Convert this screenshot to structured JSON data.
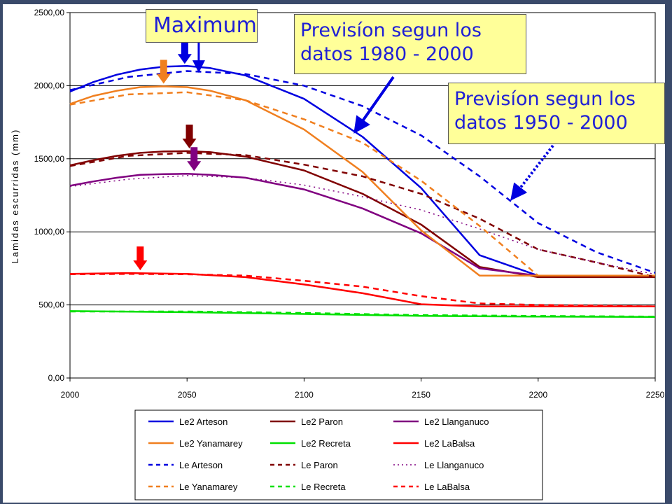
{
  "callouts": {
    "maximum": "Maximum",
    "forecast_1980_line1": "Previsíon segun los",
    "forecast_1980_line2": "datos 1980 - 2000",
    "forecast_1950_line1": "Previsíon segun los",
    "forecast_1950_line2": "datos 1950 - 2000"
  },
  "chart_data": {
    "type": "line",
    "title": "",
    "xlabel": "",
    "ylabel": "Lamidas escurridas (mm)",
    "xlim": [
      2000,
      2250
    ],
    "ylim": [
      0,
      2500
    ],
    "x_ticks": [
      "2000",
      "2050",
      "2100",
      "2150",
      "2200",
      "2250"
    ],
    "y_ticks": [
      "0,00",
      "500,00",
      "1000,00",
      "1500,00",
      "2000,00",
      "2500,00"
    ],
    "grid": "horizontal",
    "legend": "bottom",
    "series": [
      {
        "name": "Le2 Arteson",
        "color": "#0000e0",
        "dash": "solid",
        "x": [
          2000,
          2010,
          2020,
          2030,
          2040,
          2050,
          2060,
          2075,
          2100,
          2125,
          2150,
          2175,
          2200,
          2225,
          2250
        ],
        "y": [
          1960,
          2025,
          2075,
          2110,
          2130,
          2135,
          2120,
          2070,
          1910,
          1650,
          1300,
          840,
          700,
          700,
          700
        ]
      },
      {
        "name": "Le2 Paron",
        "color": "#800000",
        "dash": "solid",
        "x": [
          2000,
          2010,
          2020,
          2030,
          2040,
          2050,
          2060,
          2075,
          2100,
          2125,
          2150,
          2175,
          2200,
          2225,
          2250
        ],
        "y": [
          1455,
          1490,
          1520,
          1540,
          1550,
          1552,
          1545,
          1515,
          1420,
          1260,
          1050,
          760,
          690,
          690,
          690
        ]
      },
      {
        "name": "Le2 Llanganuco",
        "color": "#800080",
        "dash": "solid",
        "x": [
          2000,
          2010,
          2020,
          2030,
          2040,
          2050,
          2060,
          2075,
          2100,
          2125,
          2150,
          2175,
          2200,
          2225,
          2250
        ],
        "y": [
          1315,
          1345,
          1370,
          1390,
          1395,
          1397,
          1390,
          1370,
          1290,
          1160,
          990,
          750,
          700,
          700,
          700
        ]
      },
      {
        "name": "Le2 Yanamarey",
        "color": "#f07f1f",
        "dash": "solid",
        "x": [
          2000,
          2010,
          2020,
          2030,
          2040,
          2050,
          2060,
          2075,
          2100,
          2125,
          2150,
          2175,
          2200,
          2225,
          2250
        ],
        "y": [
          1875,
          1930,
          1965,
          1990,
          1995,
          1990,
          1965,
          1900,
          1700,
          1410,
          1010,
          700,
          700,
          700,
          700
        ]
      },
      {
        "name": "Le2 Recreta",
        "color": "#00e000",
        "dash": "solid",
        "x": [
          2000,
          2050,
          2100,
          2150,
          2200,
          2250
        ],
        "y": [
          458,
          450,
          438,
          425,
          420,
          418
        ]
      },
      {
        "name": "Le2 LaBalsa",
        "color": "#ff0000",
        "dash": "solid",
        "x": [
          2000,
          2025,
          2050,
          2075,
          2100,
          2125,
          2150,
          2175,
          2200,
          2225,
          2250
        ],
        "y": [
          712,
          718,
          712,
          690,
          640,
          580,
          505,
          490,
          490,
          490,
          490
        ]
      },
      {
        "name": "Le Arteson",
        "color": "#0000e0",
        "dash": "dashed",
        "x": [
          2000,
          2025,
          2050,
          2075,
          2100,
          2125,
          2150,
          2175,
          2200,
          2225,
          2250
        ],
        "y": [
          1970,
          2060,
          2100,
          2080,
          2000,
          1860,
          1660,
          1380,
          1060,
          860,
          720
        ]
      },
      {
        "name": "Le Paron",
        "color": "#800000",
        "dash": "dashed",
        "x": [
          2000,
          2025,
          2050,
          2075,
          2100,
          2125,
          2150,
          2175,
          2200,
          2225,
          2250
        ],
        "y": [
          1450,
          1520,
          1540,
          1525,
          1460,
          1380,
          1260,
          1090,
          880,
          790,
          690
        ]
      },
      {
        "name": "Le Llanganuco",
        "color": "#800080",
        "dash": "dotted",
        "x": [
          2000,
          2025,
          2050,
          2075,
          2100,
          2125,
          2150,
          2175,
          2200,
          2225,
          2250
        ],
        "y": [
          1310,
          1360,
          1385,
          1370,
          1320,
          1240,
          1150,
          1020,
          880,
          790,
          710
        ]
      },
      {
        "name": "Le Yanamarey",
        "color": "#f07f1f",
        "dash": "dashed",
        "x": [
          2000,
          2025,
          2050,
          2075,
          2100,
          2125,
          2150,
          2175,
          2200,
          2225,
          2250
        ],
        "y": [
          1870,
          1940,
          1955,
          1900,
          1770,
          1610,
          1350,
          1040,
          700,
          700,
          700
        ]
      },
      {
        "name": "Le Recreta",
        "color": "#00e000",
        "dash": "dashed",
        "x": [
          2000,
          2050,
          2100,
          2150,
          2200,
          2250
        ],
        "y": [
          455,
          455,
          445,
          430,
          425,
          420
        ]
      },
      {
        "name": "Le LaBalsa",
        "color": "#ff0000",
        "dash": "dashed",
        "x": [
          2000,
          2025,
          2050,
          2075,
          2100,
          2125,
          2150,
          2175,
          2200,
          2225,
          2250
        ],
        "y": [
          710,
          712,
          710,
          700,
          665,
          625,
          560,
          510,
          500,
          495,
          490
        ]
      }
    ],
    "markers": [
      {
        "name": "max-arrow-arteson",
        "x": 2049,
        "y": 2130,
        "color": "#0000e0"
      },
      {
        "name": "max-arrow-yanamarey",
        "x": 2040,
        "y": 1995,
        "color": "#f07f1f"
      },
      {
        "name": "max-arrow-paron",
        "x": 2051,
        "y": 1552,
        "color": "#800000"
      },
      {
        "name": "max-arrow-llanganuco",
        "x": 2053,
        "y": 1397,
        "color": "#800080"
      },
      {
        "name": "max-arrow-labalsa",
        "x": 2030,
        "y": 718,
        "color": "#ff0000"
      }
    ]
  }
}
